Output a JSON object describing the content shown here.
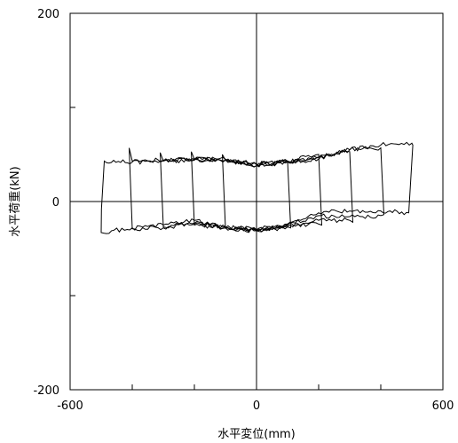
{
  "chart_data": {
    "type": "line",
    "title": "",
    "xlabel": "水平変位(mm)",
    "ylabel": "水平荷重(kN)",
    "xlim": [
      -600,
      600
    ],
    "ylim": [
      -200,
      200
    ],
    "xticks": [
      -600,
      0,
      600
    ],
    "yticks": [
      -200,
      0,
      200
    ],
    "xtick_labels": [
      "-600",
      "0",
      "600"
    ],
    "ytick_labels": [
      "-200",
      "0",
      "200"
    ],
    "minor_xticks": [
      -400,
      -200,
      200,
      400
    ],
    "minor_yticks": [
      -100,
      100
    ],
    "grid": false,
    "zero_lines": true,
    "line_color": "#000000",
    "series": [
      {
        "x": [
          0,
          100,
          200,
          300,
          400,
          500,
          503,
          490,
          400,
          300,
          200,
          100,
          0,
          -100,
          -200,
          -300,
          -400,
          -500,
          -499,
          -490,
          -400,
          -300,
          -200,
          -100,
          0
        ],
        "y": [
          40,
          42,
          45,
          55,
          60,
          62,
          60,
          -12,
          -10,
          -10,
          -12,
          -24,
          -30,
          -27,
          -20,
          -25,
          -28,
          -33,
          -8,
          43,
          42,
          43,
          45,
          45,
          40
        ]
      },
      {
        "x": [
          0,
          100,
          200,
          300,
          400,
          410,
          400,
          300,
          200,
          100,
          0,
          -100,
          -200,
          -300,
          -400,
          -410,
          -400,
          -300,
          -200,
          -100,
          0
        ],
        "y": [
          40,
          42,
          47,
          55,
          57,
          -14,
          -15,
          -16,
          -15,
          -24,
          -30,
          -27,
          -24,
          -28,
          -29,
          57,
          43,
          44,
          45,
          44,
          40
        ]
      },
      {
        "x": [
          0,
          100,
          200,
          300,
          310,
          300,
          200,
          100,
          0,
          -100,
          -200,
          -300,
          -310,
          -300,
          -200,
          -100,
          0
        ],
        "y": [
          38,
          42,
          47,
          53,
          -22,
          -20,
          -20,
          -25,
          -31,
          -28,
          -23,
          -27,
          52,
          43,
          44,
          44,
          38
        ]
      },
      {
        "x": [
          0,
          100,
          200,
          210,
          200,
          100,
          0,
          -100,
          -200,
          -210,
          -200,
          -100,
          0
        ],
        "y": [
          39,
          43,
          50,
          -25,
          -24,
          -26,
          -31,
          -28,
          -25,
          53,
          45,
          44,
          39
        ]
      },
      {
        "x": [
          0,
          100,
          110,
          100,
          0,
          -100,
          -110,
          -100,
          0
        ],
        "y": [
          38,
          43,
          -28,
          -27,
          -31,
          -28,
          50,
          44,
          38
        ]
      }
    ]
  }
}
